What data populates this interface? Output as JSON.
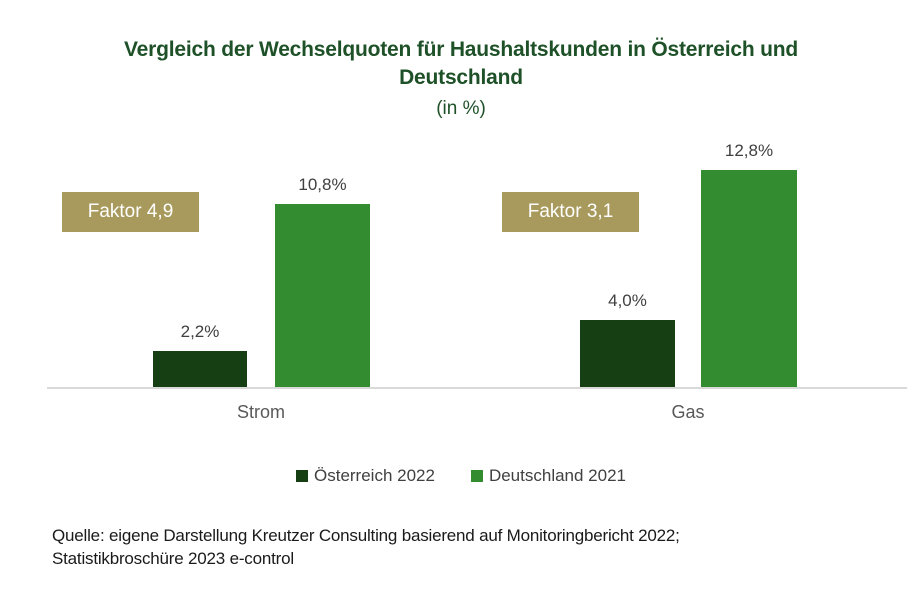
{
  "title": {
    "line1": "Vergleich der Wechselquoten für Haushaltskunden in Österreich und",
    "line2": "Deutschland",
    "subtitle": "(in %)"
  },
  "chart_data": {
    "type": "bar",
    "title": "Vergleich der Wechselquoten für Haushaltskunden in Österreich und Deutschland",
    "subtitle": "(in %)",
    "categories": [
      "Strom",
      "Gas"
    ],
    "series": [
      {
        "name": "Österreich 2022",
        "values": [
          2.2,
          4.0
        ],
        "value_labels": [
          "2,2%",
          "4,0%"
        ],
        "color": "#173F14"
      },
      {
        "name": "Deutschland 2021",
        "values": [
          10.8,
          12.8
        ],
        "value_labels": [
          "10,8%",
          "12,8%"
        ],
        "color": "#348C30"
      }
    ],
    "annotations": [
      {
        "text": "Faktor 4,9",
        "category": "Strom",
        "box_color": "#A89A5C",
        "text_color": "#FFFFFF"
      },
      {
        "text": "Faktor 3,1",
        "category": "Gas",
        "box_color": "#A89A5C",
        "text_color": "#FFFFFF"
      }
    ],
    "unit": "%",
    "ylim": [
      0,
      14
    ],
    "grid": false,
    "y_axis_visible": false,
    "legend_position": "bottom",
    "axis_line_color": "#D9D9D9"
  },
  "legend": {
    "items": [
      {
        "label": "Österreich 2022",
        "color": "#173F14"
      },
      {
        "label": "Deutschland 2021",
        "color": "#348C30"
      }
    ]
  },
  "source": {
    "line1": "Quelle: eigene Darstellung Kreutzer Consulting basierend auf Monitoringbericht 2022;",
    "line2": "Statistikbroschüre 2023 e-control"
  },
  "colors": {
    "title": "#1E5128",
    "data_label": "#404040",
    "category_label": "#595959",
    "legend_text": "#404040",
    "annotation_box": "#A89A5C",
    "annotation_text": "#FFFFFF",
    "axis_line": "#D9D9D9",
    "source_text": "#1A1A1A",
    "background": "#FFFFFF"
  }
}
